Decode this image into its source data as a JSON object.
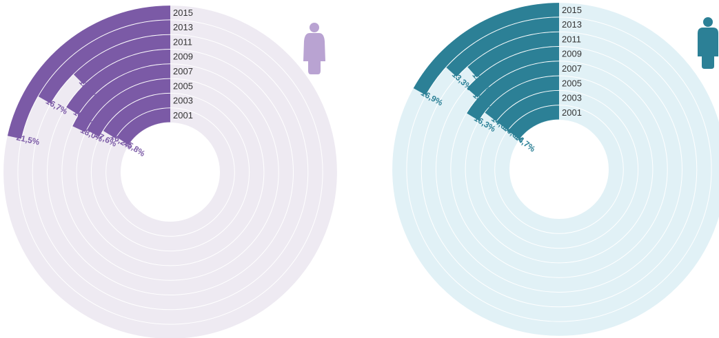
{
  "colors": {
    "female_fill": "#7B5AA6",
    "female_track": "#EEEAF2",
    "female_icon": "#B9A3D2",
    "male_fill": "#2C8096",
    "male_track": "#E1F1F6",
    "male_icon": "#2C8096",
    "separator": "#ffffff"
  },
  "icons": {
    "female": "female-person-icon",
    "male": "male-person-icon"
  },
  "chart_data": [
    {
      "type": "radial-bar",
      "name": "",
      "unit": "%",
      "max": 100,
      "categories": [
        "2001",
        "2003",
        "2005",
        "2007",
        "2009",
        "2011",
        "2013",
        "2015"
      ],
      "values": [
        15.8,
        16.2,
        17.6,
        18.0,
        16.1,
        12.4,
        16.7,
        21.5
      ],
      "labels": [
        "15,8%",
        "16,2%",
        "17,6%",
        "18,0%",
        "16,1%",
        "12,4%",
        "16,7%",
        "21,5%"
      ]
    },
    {
      "type": "radial-bar",
      "name": "",
      "unit": "%",
      "max": 100,
      "categories": [
        "2001",
        "2003",
        "2005",
        "2007",
        "2009",
        "2011",
        "2013",
        "2015"
      ],
      "values": [
        14.7,
        14.6,
        14.6,
        16.3,
        13.5,
        11.6,
        13.3,
        16.9
      ],
      "labels": [
        "14,7%",
        "14,6%",
        "14,6%",
        "16,3%",
        "13,5%",
        "11,6%",
        "13,3%",
        "16,9%"
      ]
    }
  ]
}
